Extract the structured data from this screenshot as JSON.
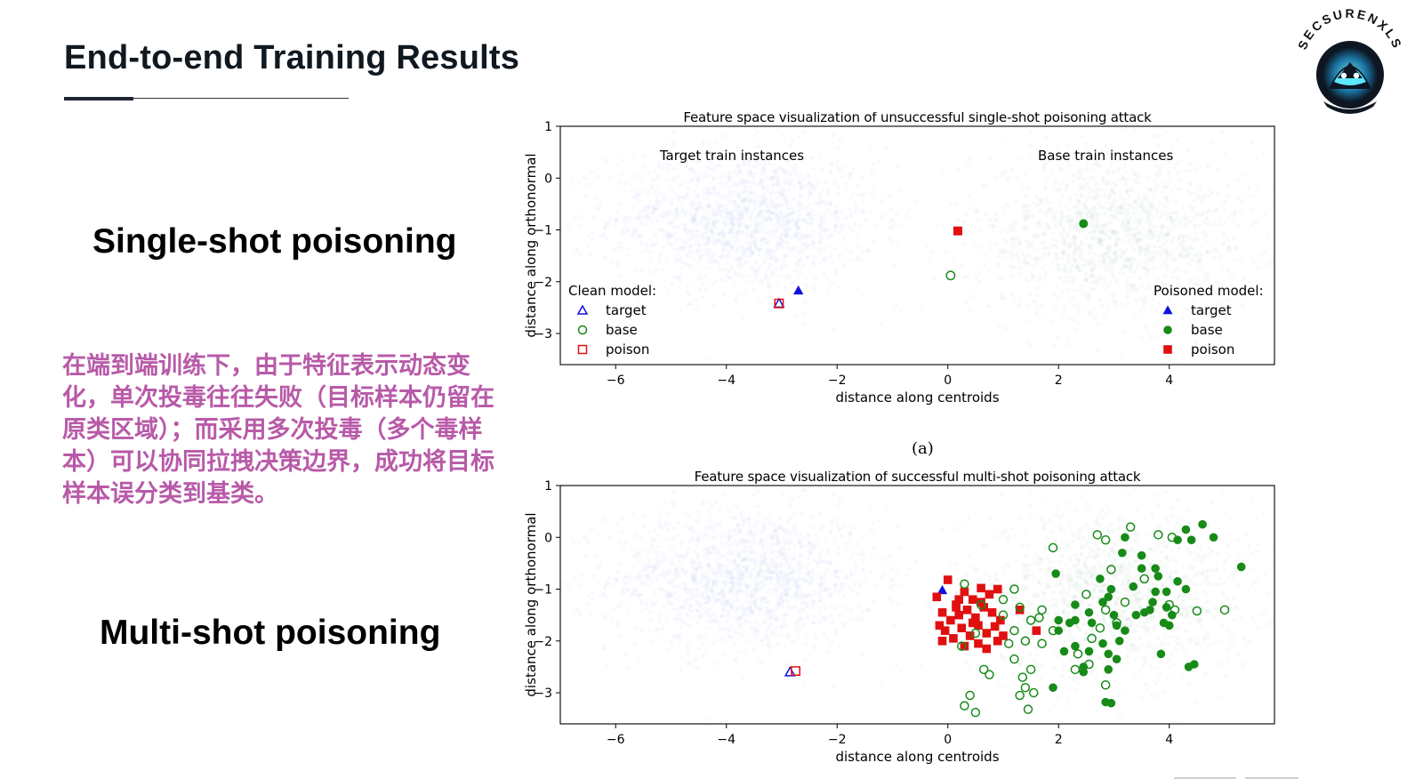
{
  "page": {
    "title": "End-to-end Training Results",
    "single_heading": "Single-shot poisoning",
    "multi_heading": "Multi-shot poisoning",
    "note_cn": "在端到端训练下，由于特征表示动态变化，单次投毒往往失败（目标样本仍留在原类区域）；而采用多次投毒（多个毒样本）可以协同拉拽决策边界，成功将目标样本误分类到基类。",
    "caption_a": "(a)"
  },
  "logo": {
    "text": "SECSURENXLS",
    "icon": "hooded-mask-logo-icon"
  },
  "chart_data": [
    {
      "type": "scatter",
      "title": "Feature space visualization of unsuccessful single-shot poisoning attack",
      "xlabel": "distance along centroids",
      "ylabel": "distance along orthonormal",
      "xlim": [
        -7,
        5.9
      ],
      "ylim": [
        -3.6,
        1
      ],
      "xticks": [
        -6,
        -4,
        -2,
        0,
        2,
        4
      ],
      "yticks": [
        1,
        0,
        -1,
        -2,
        -3
      ],
      "annotations": [
        {
          "text": "Target train instances",
          "x": -3.9,
          "y": 0.35
        },
        {
          "text": "Base train instances",
          "x": 2.85,
          "y": 0.35
        }
      ],
      "background_clouds": [
        {
          "name": "Target train instances",
          "color": "#7b8ff0",
          "center": [
            -3.7,
            -0.8
          ],
          "spread": [
            1.2,
            0.7
          ]
        },
        {
          "name": "Base train instances",
          "color": "#7aa88a",
          "center": [
            3.0,
            -1.1
          ],
          "spread": [
            1.3,
            0.8
          ]
        }
      ],
      "legends": [
        {
          "title": "Clean model:",
          "placement": "lower-left",
          "entries": [
            {
              "label": "target",
              "marker": "triangle",
              "fill": false,
              "color": "#1010e0"
            },
            {
              "label": "base",
              "marker": "circle",
              "fill": false,
              "color": "#178a17"
            },
            {
              "label": "poison",
              "marker": "square",
              "fill": false,
              "color": "#e01010"
            }
          ]
        },
        {
          "title": "Poisoned model:",
          "placement": "lower-right",
          "entries": [
            {
              "label": "target",
              "marker": "triangle",
              "fill": true,
              "color": "#1010e0"
            },
            {
              "label": "base",
              "marker": "circle",
              "fill": true,
              "color": "#178a17"
            },
            {
              "label": "poison",
              "marker": "square",
              "fill": true,
              "color": "#e01010"
            }
          ]
        }
      ],
      "series": [
        {
          "model": "clean",
          "role": "target",
          "marker": "triangle",
          "fill": false,
          "color": "#1010e0",
          "points": [
            [
              -3.05,
              -2.42
            ]
          ]
        },
        {
          "model": "clean",
          "role": "poison",
          "marker": "square",
          "fill": false,
          "color": "#e01010",
          "points": [
            [
              -3.05,
              -2.42
            ]
          ]
        },
        {
          "model": "clean",
          "role": "base",
          "marker": "circle",
          "fill": false,
          "color": "#178a17",
          "points": [
            [
              0.05,
              -1.88
            ]
          ]
        },
        {
          "model": "poisoned",
          "role": "target",
          "marker": "triangle",
          "fill": true,
          "color": "#1010e0",
          "points": [
            [
              -2.7,
              -2.17
            ]
          ]
        },
        {
          "model": "poisoned",
          "role": "poison",
          "marker": "square",
          "fill": true,
          "color": "#e01010",
          "points": [
            [
              0.18,
              -1.02
            ]
          ]
        },
        {
          "model": "poisoned",
          "role": "base",
          "marker": "circle",
          "fill": true,
          "color": "#178a17",
          "points": [
            [
              2.45,
              -0.88
            ]
          ]
        }
      ]
    },
    {
      "type": "scatter",
      "title": "Feature space visualization of successful multi-shot poisoning attack",
      "xlabel": "distance along centroids",
      "ylabel": "distance along orthonormal",
      "xlim": [
        -7,
        5.9
      ],
      "ylim": [
        -3.6,
        1
      ],
      "xticks": [
        -6,
        -4,
        -2,
        0,
        2,
        4
      ],
      "yticks": [
        1,
        0,
        -1,
        -2,
        -3
      ],
      "background_clouds": [
        {
          "color": "#7b8ff0",
          "center": [
            -3.7,
            -0.8
          ],
          "spread": [
            1.2,
            0.7
          ]
        },
        {
          "color": "#7aa88a",
          "center": [
            3.0,
            -1.1
          ],
          "spread": [
            1.3,
            0.8
          ]
        }
      ],
      "series": [
        {
          "model": "clean",
          "role": "target",
          "marker": "triangle",
          "fill": false,
          "color": "#1010e0",
          "points": [
            [
              -2.85,
              -2.6
            ]
          ]
        },
        {
          "model": "clean",
          "role": "poison",
          "marker": "square",
          "fill": false,
          "color": "#e01010",
          "points": [
            [
              -2.75,
              -2.58
            ]
          ]
        },
        {
          "model": "poisoned",
          "role": "target",
          "marker": "triangle",
          "fill": true,
          "color": "#1010e0",
          "points": [
            [
              -0.1,
              -1.02
            ]
          ]
        },
        {
          "model": "poisoned",
          "role": "poison",
          "marker": "square",
          "fill": true,
          "color": "#e01010",
          "points": [
            [
              -0.2,
              -1.15
            ],
            [
              0.0,
              -0.82
            ],
            [
              0.15,
              -1.3
            ],
            [
              0.3,
              -1.05
            ],
            [
              0.45,
              -1.2
            ],
            [
              0.6,
              -0.98
            ],
            [
              0.75,
              -1.1
            ],
            [
              0.9,
              -1.0
            ],
            [
              -0.1,
              -1.45
            ],
            [
              0.05,
              -1.6
            ],
            [
              0.2,
              -1.5
            ],
            [
              0.35,
              -1.4
            ],
            [
              0.5,
              -1.55
            ],
            [
              0.65,
              -1.35
            ],
            [
              0.8,
              -1.45
            ],
            [
              0.95,
              -1.6
            ],
            [
              -0.05,
              -1.8
            ],
            [
              0.1,
              -1.95
            ],
            [
              0.25,
              -1.75
            ],
            [
              0.4,
              -1.9
            ],
            [
              0.55,
              -1.7
            ],
            [
              0.7,
              -1.85
            ],
            [
              0.85,
              -1.72
            ],
            [
              1.0,
              -1.9
            ],
            [
              -0.1,
              -2.0
            ],
            [
              0.3,
              -2.1
            ],
            [
              0.55,
              -2.05
            ],
            [
              0.9,
              -2.0
            ],
            [
              1.3,
              -1.4
            ],
            [
              1.6,
              -1.8
            ],
            [
              0.2,
              -1.2
            ],
            [
              0.6,
              -1.25
            ],
            [
              -0.15,
              -1.7
            ],
            [
              0.45,
              -1.65
            ],
            [
              0.7,
              -2.15
            ],
            [
              0.15,
              -1.35
            ]
          ]
        },
        {
          "model": "clean",
          "role": "base",
          "marker": "circle",
          "fill": false,
          "color": "#178a17",
          "points": [
            [
              0.3,
              -0.9
            ],
            [
              0.6,
              -1.3
            ],
            [
              1.0,
              -1.2
            ],
            [
              1.3,
              -1.35
            ],
            [
              1.5,
              -1.6
            ],
            [
              1.7,
              -1.4
            ],
            [
              1.2,
              -1.8
            ],
            [
              1.4,
              -2.0
            ],
            [
              1.1,
              -2.05
            ],
            [
              1.2,
              -2.35
            ],
            [
              1.5,
              -2.55
            ],
            [
              1.35,
              -2.7
            ],
            [
              0.65,
              -2.55
            ],
            [
              0.75,
              -2.65
            ],
            [
              1.4,
              -2.9
            ],
            [
              1.55,
              -3.0
            ],
            [
              1.3,
              -3.05
            ],
            [
              0.4,
              -3.05
            ],
            [
              0.3,
              -3.25
            ],
            [
              0.5,
              -3.38
            ],
            [
              1.45,
              -3.32
            ],
            [
              1.9,
              -0.2
            ],
            [
              2.7,
              0.05
            ],
            [
              3.3,
              0.2
            ],
            [
              3.8,
              0.05
            ],
            [
              4.05,
              0.0
            ],
            [
              2.85,
              -0.05
            ],
            [
              2.95,
              -0.62
            ],
            [
              2.85,
              -1.4
            ],
            [
              3.2,
              -1.25
            ],
            [
              3.05,
              -1.65
            ],
            [
              2.75,
              -1.75
            ],
            [
              2.6,
              -1.95
            ],
            [
              2.35,
              -2.25
            ],
            [
              2.3,
              -2.55
            ],
            [
              2.55,
              -2.45
            ],
            [
              2.85,
              -2.85
            ],
            [
              4.1,
              -1.4
            ],
            [
              4.5,
              -1.42
            ],
            [
              5.0,
              -1.4
            ],
            [
              1.9,
              -1.8
            ],
            [
              1.7,
              -2.05
            ],
            [
              0.25,
              -2.1
            ],
            [
              0.5,
              -1.85
            ],
            [
              1.0,
              -1.5
            ],
            [
              1.2,
              -1.0
            ],
            [
              1.65,
              -1.55
            ],
            [
              2.5,
              -1.1
            ],
            [
              3.55,
              -0.8
            ],
            [
              4.0,
              -1.3
            ]
          ]
        },
        {
          "model": "poisoned",
          "role": "base",
          "marker": "circle",
          "fill": true,
          "color": "#178a17",
          "points": [
            [
              1.95,
              -0.7
            ],
            [
              2.3,
              -1.6
            ],
            [
              2.55,
              -1.45
            ],
            [
              2.6,
              -1.65
            ],
            [
              2.8,
              -1.25
            ],
            [
              2.9,
              -1.15
            ],
            [
              2.95,
              -1.0
            ],
            [
              2.75,
              -0.8
            ],
            [
              3.0,
              -1.5
            ],
            [
              3.05,
              -1.7
            ],
            [
              3.2,
              -1.8
            ],
            [
              3.1,
              -2.0
            ],
            [
              3.05,
              -2.35
            ],
            [
              2.9,
              -2.55
            ],
            [
              2.8,
              -2.05
            ],
            [
              2.2,
              -1.65
            ],
            [
              2.0,
              -1.8
            ],
            [
              2.0,
              -1.6
            ],
            [
              2.3,
              -2.1
            ],
            [
              2.55,
              -2.2
            ],
            [
              2.45,
              -2.6
            ],
            [
              2.45,
              -2.5
            ],
            [
              2.9,
              -2.25
            ],
            [
              3.35,
              -0.95
            ],
            [
              3.4,
              -1.5
            ],
            [
              3.55,
              -1.45
            ],
            [
              3.5,
              -0.6
            ],
            [
              3.5,
              -0.35
            ],
            [
              3.2,
              0.0
            ],
            [
              3.75,
              -0.6
            ],
            [
              3.8,
              -0.75
            ],
            [
              3.75,
              -1.05
            ],
            [
              3.7,
              -1.25
            ],
            [
              3.95,
              -1.05
            ],
            [
              3.95,
              -1.35
            ],
            [
              3.9,
              -1.65
            ],
            [
              4.0,
              -1.7
            ],
            [
              4.05,
              -1.5
            ],
            [
              4.15,
              -0.85
            ],
            [
              4.3,
              -1.0
            ],
            [
              4.15,
              -0.05
            ],
            [
              4.4,
              -0.05
            ],
            [
              4.6,
              0.25
            ],
            [
              4.3,
              0.15
            ],
            [
              4.8,
              0.0
            ],
            [
              5.3,
              -0.57
            ],
            [
              4.45,
              -2.45
            ],
            [
              4.35,
              -2.5
            ],
            [
              3.85,
              -2.25
            ],
            [
              1.9,
              -2.9
            ],
            [
              2.95,
              -3.2
            ],
            [
              2.85,
              -3.18
            ],
            [
              2.1,
              -2.2
            ],
            [
              2.3,
              -1.3
            ],
            [
              3.65,
              -1.4
            ],
            [
              3.15,
              -0.3
            ]
          ]
        }
      ]
    }
  ]
}
